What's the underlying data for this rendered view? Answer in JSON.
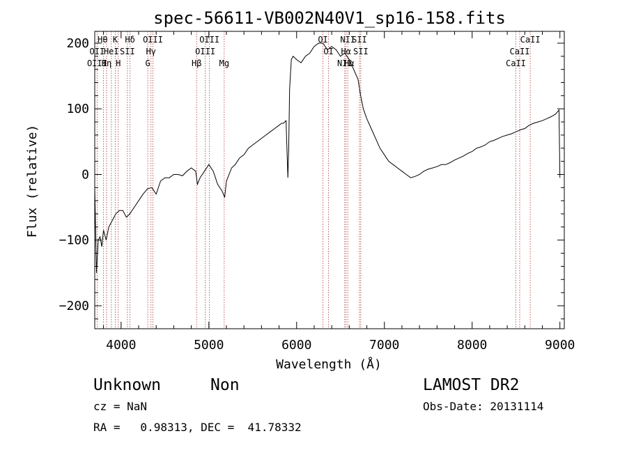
{
  "chart_data": {
    "type": "line",
    "title": "spec-56611-VB002N40V1_sp16-158.fits",
    "xlabel": "Wavelength (Å)",
    "ylabel": "Flux (relative)",
    "xlim": [
      3700,
      9050
    ],
    "ylim": [
      -235,
      218
    ],
    "xticks": [
      4000,
      5000,
      6000,
      7000,
      8000,
      9000
    ],
    "yticks": [
      -200,
      -100,
      0,
      100,
      200
    ],
    "grid": false,
    "series": [
      {
        "name": "spectrum",
        "x": [
          3700,
          3720,
          3740,
          3760,
          3780,
          3800,
          3830,
          3860,
          3900,
          3940,
          3980,
          4020,
          4060,
          4100,
          4150,
          4200,
          4250,
          4300,
          4350,
          4400,
          4450,
          4500,
          4550,
          4600,
          4650,
          4700,
          4750,
          4800,
          4850,
          4870,
          4900,
          4950,
          5000,
          5050,
          5100,
          5150,
          5180,
          5200,
          5230,
          5260,
          5300,
          5350,
          5400,
          5450,
          5500,
          5550,
          5600,
          5650,
          5700,
          5750,
          5800,
          5830,
          5850,
          5880,
          5900,
          5910,
          5920,
          5940,
          5960,
          6000,
          6050,
          6100,
          6150,
          6200,
          6250,
          6300,
          6350,
          6400,
          6450,
          6500,
          6550,
          6600,
          6650,
          6700,
          6730,
          6760,
          6800,
          6850,
          6900,
          6950,
          7000,
          7050,
          7100,
          7150,
          7200,
          7250,
          7300,
          7350,
          7400,
          7450,
          7500,
          7550,
          7600,
          7650,
          7700,
          7750,
          7800,
          7850,
          7900,
          7950,
          8000,
          8050,
          8100,
          8150,
          8200,
          8250,
          8300,
          8350,
          8400,
          8450,
          8500,
          8550,
          8600,
          8650,
          8700,
          8750,
          8800,
          8850,
          8900,
          8950,
          8990,
          9000
        ],
        "y": [
          -20,
          -150,
          -100,
          -95,
          -110,
          -85,
          -100,
          -80,
          -70,
          -60,
          -55,
          -55,
          -65,
          -60,
          -50,
          -40,
          -30,
          -22,
          -20,
          -30,
          -10,
          -5,
          -5,
          0,
          0,
          -2,
          5,
          10,
          5,
          -15,
          -5,
          5,
          15,
          5,
          -15,
          -25,
          -35,
          -10,
          0,
          10,
          15,
          25,
          30,
          40,
          45,
          50,
          55,
          60,
          65,
          70,
          75,
          78,
          78,
          82,
          -5,
          40,
          130,
          175,
          180,
          175,
          170,
          180,
          185,
          195,
          200,
          200,
          190,
          195,
          190,
          180,
          185,
          175,
          160,
          145,
          120,
          100,
          85,
          70,
          55,
          40,
          30,
          20,
          15,
          10,
          5,
          0,
          -5,
          -3,
          0,
          5,
          8,
          10,
          12,
          15,
          15,
          18,
          22,
          25,
          28,
          32,
          35,
          40,
          42,
          45,
          50,
          52,
          55,
          58,
          60,
          62,
          65,
          68,
          70,
          75,
          78,
          80,
          82,
          85,
          88,
          92,
          98,
          -5
        ],
        "color": "#000000"
      }
    ],
    "lines": [
      {
        "label": "OII",
        "x": 3727
      },
      {
        "label": "Hθ",
        "x": 3798
      },
      {
        "label": "Hη",
        "x": 3835
      },
      {
        "label": "K",
        "x": 3934
      },
      {
        "label": "HeI",
        "x": 3889
      },
      {
        "label": "H",
        "x": 3968
      },
      {
        "label": "SII",
        "x": 4072
      },
      {
        "label": "Hδ",
        "x": 4102
      },
      {
        "label": "G",
        "x": 4304
      },
      {
        "label": "Hγ",
        "x": 4341
      },
      {
        "label": "OIII",
        "x": 4363
      },
      {
        "label": "Hβ",
        "x": 4861
      },
      {
        "label": "OIII",
        "x": 4959
      },
      {
        "label": "OIII",
        "x": 5007
      },
      {
        "label": "Mg",
        "x": 5175
      },
      {
        "label": "OI",
        "x": 6300
      },
      {
        "label": "OI",
        "x": 6364
      },
      {
        "label": "NII",
        "x": 6548
      },
      {
        "label": "Hα",
        "x": 6563
      },
      {
        "label": "NII",
        "x": 6583
      },
      {
        "label": "SII",
        "x": 6716
      },
      {
        "label": "SII",
        "x": 6731
      },
      {
        "label": "CaII",
        "x": 8498
      },
      {
        "label": "CaII",
        "x": 8542
      },
      {
        "label": "CaII",
        "x": 8662
      }
    ],
    "line_labels": [
      {
        "text": "Hθ",
        "x": 3790,
        "row": 1
      },
      {
        "text": "K",
        "x": 3934,
        "row": 1
      },
      {
        "text": "Hδ",
        "x": 4102,
        "row": 1
      },
      {
        "text": "OIII",
        "x": 4363,
        "row": 1
      },
      {
        "text": "OIII",
        "x": 5007,
        "row": 1
      },
      {
        "text": "OI",
        "x": 6300,
        "row": 1
      },
      {
        "text": "NII",
        "x": 6583,
        "row": 1
      },
      {
        "text": "SII",
        "x": 6716,
        "row": 1
      },
      {
        "text": "CaII",
        "x": 8662,
        "row": 1
      },
      {
        "text": "OII",
        "x": 3727,
        "row": 2
      },
      {
        "text": "HeI",
        "x": 3889,
        "row": 2
      },
      {
        "text": "SII",
        "x": 4072,
        "row": 2
      },
      {
        "text": "Hγ",
        "x": 4341,
        "row": 2
      },
      {
        "text": "OIII",
        "x": 4959,
        "row": 2
      },
      {
        "text": "OI",
        "x": 6364,
        "row": 2
      },
      {
        "text": "Hα",
        "x": 6563,
        "row": 2
      },
      {
        "text": "SII",
        "x": 6731,
        "row": 2
      },
      {
        "text": "CaII",
        "x": 8542,
        "row": 2
      },
      {
        "text": "OIII",
        "x": 3727,
        "row": 3
      },
      {
        "text": "Hη",
        "x": 3835,
        "row": 3
      },
      {
        "text": "H",
        "x": 3968,
        "row": 3
      },
      {
        "text": "G",
        "x": 4304,
        "row": 3
      },
      {
        "text": "Hβ",
        "x": 4861,
        "row": 3
      },
      {
        "text": "Mg",
        "x": 5175,
        "row": 3
      },
      {
        "text": "NII",
        "x": 6548,
        "row": 3
      },
      {
        "text": "Hα",
        "x": 6600,
        "row": 3
      },
      {
        "text": "CaII",
        "x": 8498,
        "row": 3
      }
    ]
  },
  "info": {
    "classification": "Unknown",
    "subclass": "Non",
    "survey": "LAMOST DR2",
    "cz": "cz = NaN",
    "obs_date": "Obs-Date: 20131114",
    "radec": "RA =   0.98313, DEC =  41.78332"
  }
}
